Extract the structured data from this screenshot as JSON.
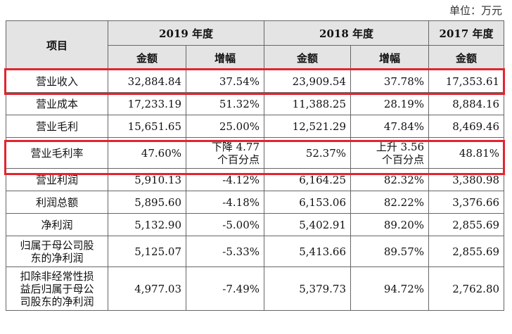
{
  "unit_label": "单位：万元",
  "header": {
    "item": "项目",
    "years": [
      "2019 年度",
      "2018 年度",
      "2017 年度"
    ],
    "amount": "金额",
    "growth": "增幅"
  },
  "rows": [
    {
      "label": "营业收入",
      "y2019": "32,884.84",
      "g2019": "37.54%",
      "y2018": "23,909.54",
      "g2018": "37.78%",
      "y2017": "17,353.61"
    },
    {
      "label": "营业成本",
      "y2019": "17,233.19",
      "g2019": "51.32%",
      "y2018": "11,388.25",
      "g2018": "28.19%",
      "y2017": "8,884.16"
    },
    {
      "label": "营业毛利",
      "y2019": "15,651.65",
      "g2019": "25.00%",
      "y2018": "12,521.29",
      "g2018": "47.84%",
      "y2017": "8,469.46"
    },
    {
      "label": "营业毛利率",
      "y2019": "47.60%",
      "g2019_line1": "下降 4.77",
      "g2019_line2": "个百分点",
      "y2018": "52.37%",
      "g2018_line1": "上升 3.56",
      "g2018_line2": "个百分点",
      "y2017": "48.81%"
    },
    {
      "label": "营业利润",
      "y2019": "5,910.13",
      "g2019": "-4.12%",
      "y2018": "6,164.25",
      "g2018": "82.32%",
      "y2017": "3,380.98"
    },
    {
      "label": "利润总额",
      "y2019": "5,895.60",
      "g2019": "-4.18%",
      "y2018": "6,153.06",
      "g2018": "82.22%",
      "y2017": "3,376.66"
    },
    {
      "label": "净利润",
      "y2019": "5,132.90",
      "g2019": "-5.00%",
      "y2018": "5,402.91",
      "g2018": "89.20%",
      "y2017": "2,855.69"
    },
    {
      "label_line1": "归属于母公司股",
      "label_line2": "东的净利润",
      "y2019": "5,125.07",
      "g2019": "-5.33%",
      "y2018": "5,413.66",
      "g2018": "89.57%",
      "y2017": "2,855.69"
    },
    {
      "label_line1": "扣除非经常性损",
      "label_line2": "益后归属于母公",
      "label_line3": "司股东的净利润",
      "y2019": "4,977.03",
      "g2019": "-7.49%",
      "y2018": "5,379.73",
      "g2018": "94.72%",
      "y2017": "2,762.80"
    }
  ],
  "highlight_color": "#e3242f"
}
